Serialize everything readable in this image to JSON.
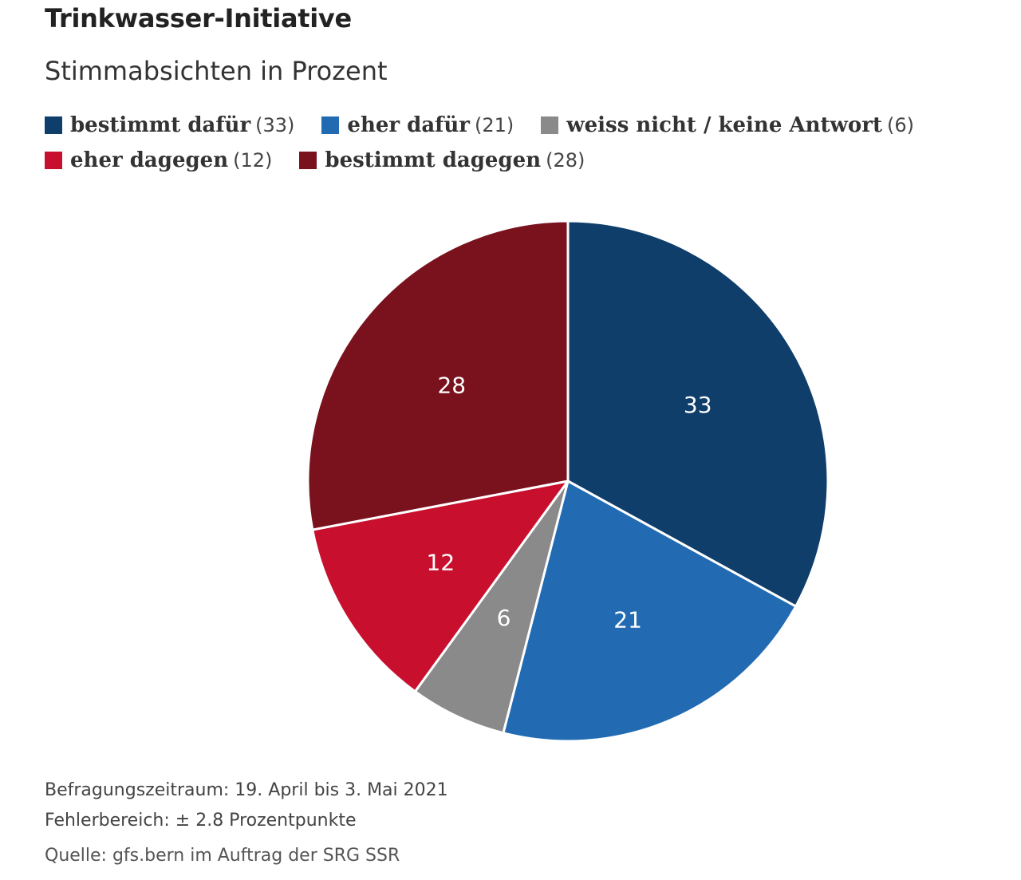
{
  "chart_data": {
    "type": "pie",
    "title": "Trinkwasser-Initiative",
    "subtitle": "Stimmabsichten in Prozent",
    "legend_position": "top",
    "slices": [
      {
        "label": "bestimmt dafür",
        "value": 33,
        "value_text": "(33)",
        "data_label": "33",
        "color": "#0f3e6b"
      },
      {
        "label": "eher dafür",
        "value": 21,
        "value_text": "(21)",
        "data_label": "21",
        "color": "#226bb3"
      },
      {
        "label": "weiss nicht / keine Antwort",
        "value": 6,
        "value_text": "(6)",
        "data_label": "6",
        "color": "#8a8a8a"
      },
      {
        "label": "eher dagegen",
        "value": 12,
        "value_text": "(12)",
        "data_label": "12",
        "color": "#c8102e"
      },
      {
        "label": "bestimmt dagegen",
        "value": 28,
        "value_text": "(28)",
        "data_label": "28",
        "color": "#7a121e"
      }
    ]
  },
  "notes": {
    "period": "Befragungszeitraum: 19. April bis 3. Mai 2021",
    "error": "Fehlerbereich: ± 2.8 Prozentpunkte",
    "source": "Quelle: gfs.bern im Auftrag der SRG SSR"
  }
}
